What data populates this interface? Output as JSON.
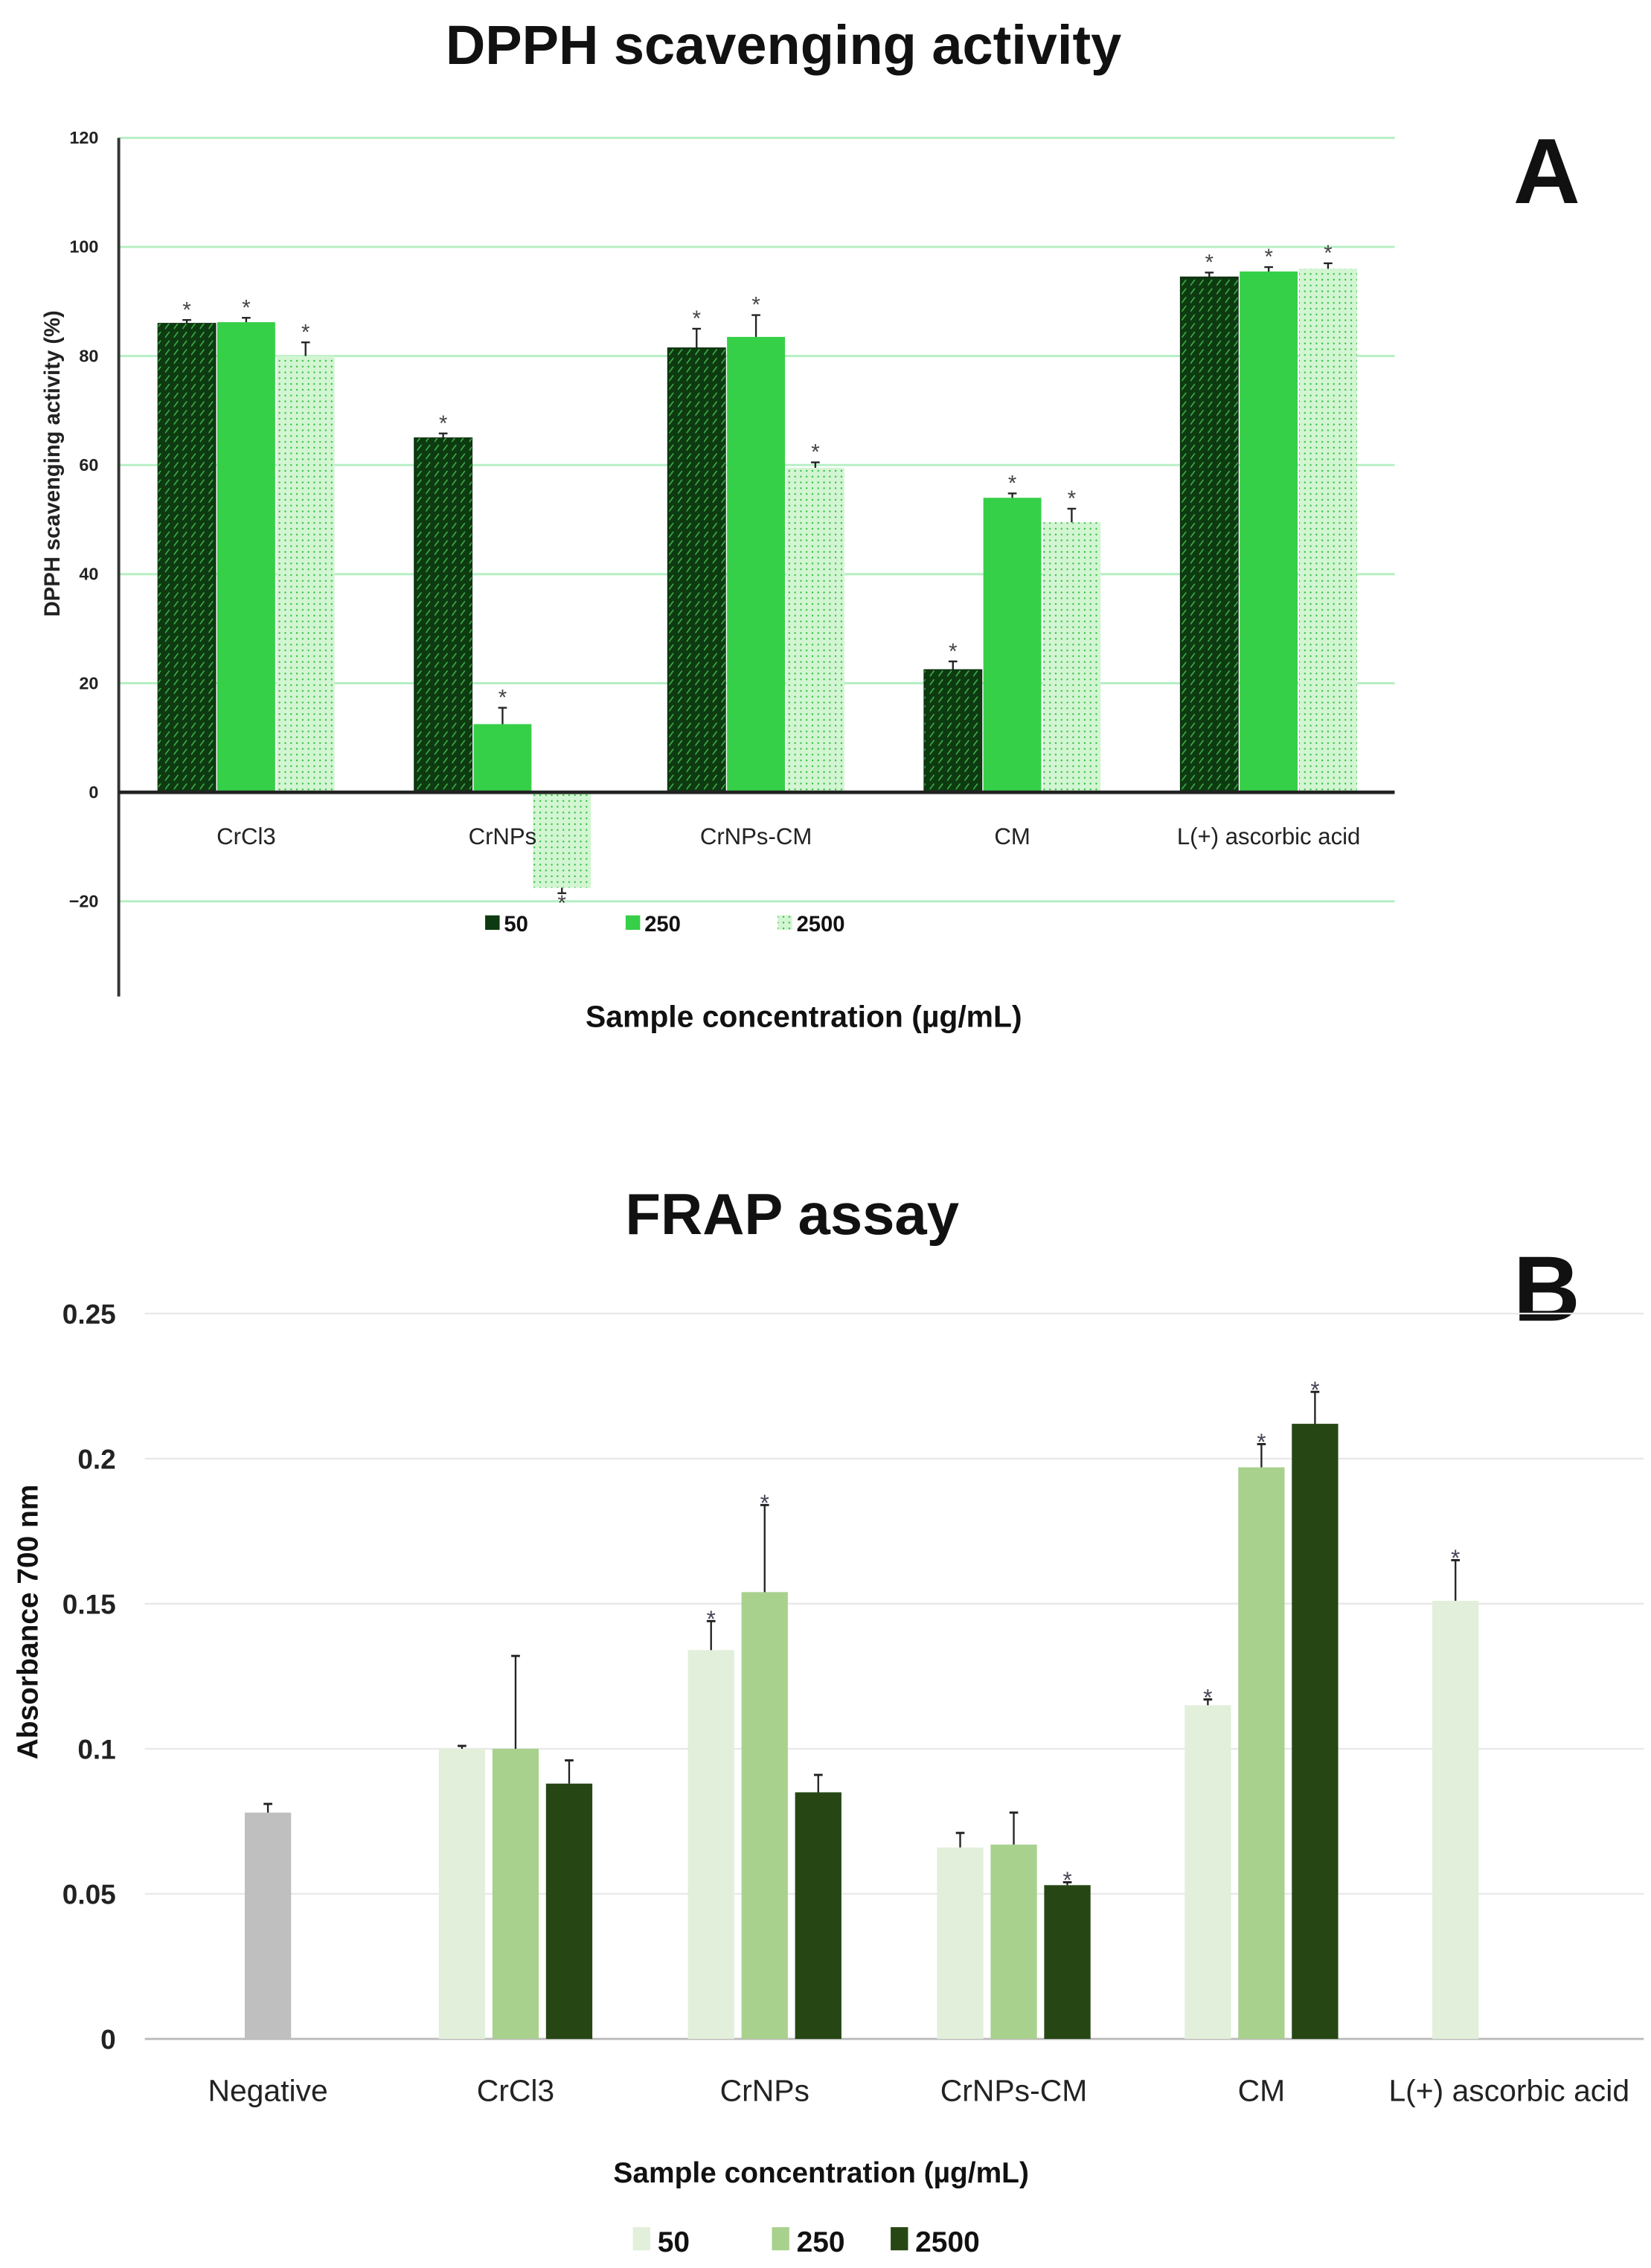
{
  "chart_data": [
    {
      "type": "bar",
      "panel_letter": "A",
      "title": "DPPH scavenging activity",
      "xlabel": "Sample concentration (µg/mL)",
      "ylabel": "DPPH scavenging activity (%)",
      "ylim": [
        -20,
        120
      ],
      "yticks": [
        -20,
        0,
        20,
        40,
        60,
        80,
        100,
        120
      ],
      "ytick_labels": [
        "−20",
        "0",
        "20",
        "40",
        "60",
        "80",
        "100",
        "120"
      ],
      "grid": true,
      "legend_placement": "bottom",
      "categories": [
        "CrCl3",
        "CrNPs",
        "CrNPs-CM",
        "CM",
        "L(+) ascorbic acid"
      ],
      "series": [
        {
          "name": "50",
          "color": "#0d3a10",
          "values": [
            86,
            65,
            81.5,
            22.5,
            94.5
          ],
          "errors": [
            0.6,
            0.8,
            3.5,
            1.5,
            0.8
          ],
          "significant": [
            true,
            true,
            true,
            true,
            true
          ]
        },
        {
          "name": "250",
          "color": "#33cc44",
          "values": [
            86.2,
            12.5,
            83.5,
            54,
            95.5
          ],
          "errors": [
            0.8,
            3,
            4,
            0.8,
            0.8
          ],
          "significant": [
            true,
            true,
            true,
            true,
            true
          ]
        },
        {
          "name": "2500",
          "color": "#c9f2c9",
          "values": [
            80,
            -17.5,
            59.5,
            49.5,
            96
          ],
          "errors": [
            2.5,
            1,
            1,
            2.5,
            1
          ],
          "significant": [
            true,
            true,
            true,
            true,
            true
          ]
        }
      ]
    },
    {
      "type": "bar",
      "panel_letter": "B",
      "title": "FRAP assay",
      "xlabel": "Sample concentration (µg/mL)",
      "ylabel": "Absorbance 700 nm",
      "ylim": [
        0,
        0.25
      ],
      "yticks": [
        0,
        0.05,
        0.1,
        0.15,
        0.2,
        0.25
      ],
      "ytick_labels": [
        "0",
        "0.05",
        "0.1",
        "0.15",
        "0.2",
        "0.25"
      ],
      "grid": true,
      "legend_placement": "bottom",
      "categories": [
        "Negative",
        "CrCl3",
        "CrNPs",
        "CrNPs-CM",
        "CM",
        "L(+) ascorbic acid"
      ],
      "negative_control": {
        "category": "Negative",
        "color": "#bfbfbf",
        "value": 0.078,
        "error": 0.003
      },
      "series": [
        {
          "name": "50",
          "color": "#e2efda",
          "values": [
            null,
            0.1,
            0.134,
            0.066,
            0.115,
            0.151
          ],
          "errors": [
            null,
            0.001,
            0.01,
            0.005,
            0.002,
            0.014
          ],
          "significant": [
            false,
            false,
            true,
            false,
            true,
            true
          ]
        },
        {
          "name": "250",
          "color": "#a9d18e",
          "values": [
            null,
            0.1,
            0.154,
            0.067,
            0.197,
            null
          ],
          "errors": [
            null,
            0.032,
            0.03,
            0.011,
            0.008,
            null
          ],
          "significant": [
            false,
            false,
            true,
            false,
            true,
            false
          ]
        },
        {
          "name": "2500",
          "color": "#264714",
          "values": [
            null,
            0.088,
            0.085,
            0.053,
            0.212,
            null
          ],
          "errors": [
            null,
            0.008,
            0.006,
            0.001,
            0.011,
            null
          ],
          "significant": [
            false,
            false,
            false,
            true,
            true,
            false
          ]
        }
      ]
    }
  ],
  "significance_marker": "*"
}
